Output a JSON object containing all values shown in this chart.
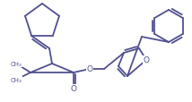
{
  "bg_color": "#ffffff",
  "line_color": "#505090",
  "line_width": 1.3,
  "figsize": [
    2.14,
    1.15
  ],
  "dpi": 100,
  "xlim": [
    0,
    214
  ],
  "ylim": [
    0,
    115
  ]
}
